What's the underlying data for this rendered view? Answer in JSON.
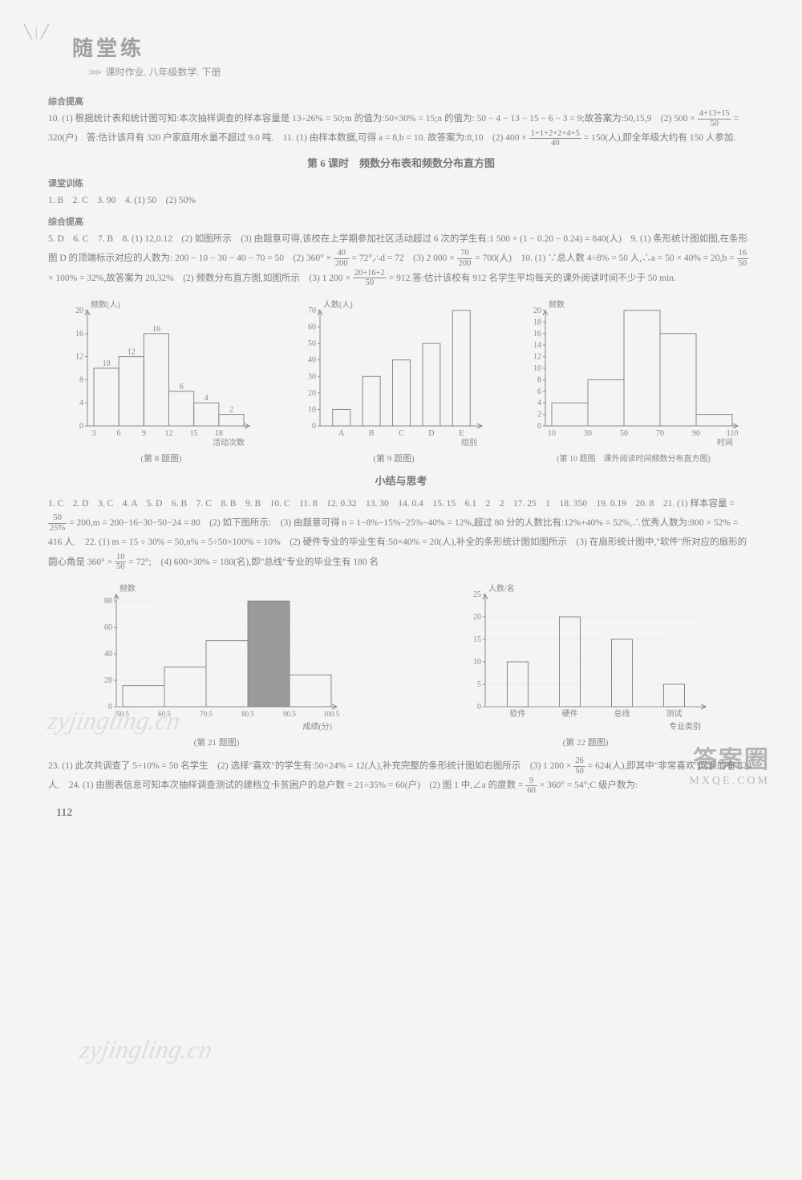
{
  "header": {
    "title": "随堂练",
    "subtitle": "课时作业. 八年级数学. 下册",
    "arrow": ">>>"
  },
  "sections": {
    "s1_title": "综合提高",
    "s1_body": "10. (1) 根据统计表和统计图可知:本次抽样调查的样本容量是 13÷26% = 50;m 的值为:50×30% = 15;n 的值为: 50 − 4 − 13 − 15 − 6 − 3 = 9;故答案为:50,15,9　(2) 500 × ",
    "s1_frac1_n": "4+13+15",
    "s1_frac1_d": "50",
    "s1_body2": " = 320(户)　答:估计该月有 320 户家庭用水量不超过 9.0 吨.　11. (1) 由样本数据,可得 a = 8,b = 10. 故答案为:8,10　(2) 400 × ",
    "s1_frac2_n": "1+1+2+2+4+5",
    "s1_frac2_d": "40",
    "s1_body3": " = 150(人),即全年级大约有 150 人参加.",
    "lesson6_title": "第 6 课时　频数分布表和频数分布直方图",
    "s2_title": "课堂训练",
    "s2_body": "1. B　2. C　3. 90　4. (1) 50　(2) 50%",
    "s3_title": "综合提高",
    "s3_body": "5. D　6. C　7. B　8. (1) 12,0.12　(2) 如图所示　(3) 由题意可得,该校在上学期参加社区活动超过 6 次的学生有:1 500 × (1 − 0.20 − 0.24) = 840(人)　9. (1) 条形统计图如图,在条形图 D 的顶端标示对应的人数为: 200 − 10 − 30 − 40 − 70 = 50　(2) 360° × ",
    "s3_frac1_n": "40",
    "s3_frac1_d": "200",
    "s3_body2": " = 72°,∴d = 72　(3) 2 000 × ",
    "s3_frac2_n": "70",
    "s3_frac2_d": "200",
    "s3_body3": " = 700(人)　10. (1) ∵总人数 4÷8% = 50 人,∴a = 50 × 40% = 20,b = ",
    "s3_frac3_n": "16",
    "s3_frac3_d": "50",
    "s3_body4": " × 100% = 32%,故答案为 20,32%　(2) 频数分布直方图,如图所示　(3) 1 200 × ",
    "s3_frac4_n": "20+16+2",
    "s3_frac4_d": "50",
    "s3_body5": " = 912.答:估计该校有 912 名学生平均每天的课外阅读时间不少于 50 min.",
    "summary_title": "小结与思考",
    "s4_body": "1. C　2. D　3. C　4. A　5. D　6. B　7. C　8. B　9. B　10. C　11. 8　12. 0.32　13. 30　14. 0.4　15. 15　6.1　2　2　17. 25　1　18. 350　19. 0.19　20. 8　21. (1) 样本容量 = ",
    "s4_frac1_n": "50",
    "s4_frac1_d": "25%",
    "s4_body2": " = 200,m = 200−16−30−50−24 = 80　(2) 如下图所示:　(3) 由题意可得 n = 1−8%−15%−25%−40% = 12%,超过 80 分的人数比有:12%+40% = 52%,∴优秀人数为:800 × 52% = 416 人.　22. (1) m = 15 ÷ 30% = 50,n% = 5÷50×100% = 10%　(2) 硬件专业的毕业生有:50×40% = 20(人),补全的条形统计图如图所示　(3) 在扇形统计图中,\"软件\"所对应的扇形的圆心角是 360° × ",
    "s4_frac2_n": "10",
    "s4_frac2_d": "50",
    "s4_body3": " = 72°;　(4) 600×30% = 180(名),即\"总线\"专业的毕业生有 180 名",
    "s5_body": "23. (1) 此次共调查了 5÷10% = 50 名学生　(2) 选择\"喜欢\"的学生有:50×24% = 12(人),补充完整的条形统计图如右图所示　(3) 1 200 × ",
    "s5_frac1_n": "26",
    "s5_frac1_d": "50",
    "s5_body2": " = 624(人),即其中\"非常喜欢\"网课的有 624 人.　24. (1) 由图表信息可知本次抽样调查测试的建档立卡贫困户的总户数 = 21÷35% = 60(户)　(2) 图 1 中,∠a 的度数 = ",
    "s5_frac2_n": "9",
    "s5_frac2_d": "60",
    "s5_body3": " × 360° = 54°;C 级户数为:"
  },
  "chart1": {
    "ylabel": "频数(人)",
    "xlabel": "活动次数",
    "caption": "(第 8 题图)",
    "xticks": [
      "3",
      "6",
      "9",
      "12",
      "15",
      "18"
    ],
    "yticks": [
      0,
      4,
      8,
      12,
      16,
      20
    ],
    "bars": [
      {
        "x": 0,
        "h": 10,
        "label": "10"
      },
      {
        "x": 1,
        "h": 12,
        "label": "12"
      },
      {
        "x": 2,
        "h": 16,
        "label": "16"
      },
      {
        "x": 3,
        "h": 6,
        "label": "6"
      },
      {
        "x": 4,
        "h": 4,
        "label": "4"
      },
      {
        "x": 5,
        "h": 2,
        "label": "2"
      }
    ],
    "ymax": 20
  },
  "chart2": {
    "ylabel": "人数(人)",
    "xlabel": "组别",
    "caption": "(第 9 题图)",
    "xticks": [
      "A",
      "B",
      "C",
      "D",
      "E"
    ],
    "yticks": [
      0,
      10,
      20,
      30,
      40,
      50,
      60,
      70
    ],
    "bars": [
      {
        "x": 0,
        "h": 10
      },
      {
        "x": 1,
        "h": 30
      },
      {
        "x": 2,
        "h": 40
      },
      {
        "x": 3,
        "h": 50
      },
      {
        "x": 4,
        "h": 70
      }
    ],
    "ymax": 70
  },
  "chart3": {
    "ylabel": "频数",
    "xlabel": "时间",
    "caption": "(第 10 题图　课外阅读时间频数分布直方图)",
    "xticks": [
      "10",
      "30",
      "50",
      "70",
      "90",
      "110"
    ],
    "yticks": [
      0,
      2,
      4,
      6,
      8,
      10,
      12,
      14,
      16,
      18,
      20
    ],
    "bars": [
      {
        "x": 0,
        "h": 4
      },
      {
        "x": 1,
        "h": 8
      },
      {
        "x": 2,
        "h": 20
      },
      {
        "x": 3,
        "h": 16
      },
      {
        "x": 4,
        "h": 2
      }
    ],
    "ymax": 20
  },
  "chart4": {
    "ylabel": "频数",
    "xlabel": "成绩(分)",
    "caption": "(第 21 题图)",
    "xticks": [
      "50.5",
      "60.5",
      "70.5",
      "80.5",
      "90.5",
      "100.5"
    ],
    "yticks": [
      0,
      20,
      40,
      60,
      80
    ],
    "bars": [
      {
        "x": 0,
        "h": 16,
        "fill": "none"
      },
      {
        "x": 1,
        "h": 30,
        "fill": "none"
      },
      {
        "x": 2,
        "h": 50,
        "fill": "none"
      },
      {
        "x": 3,
        "h": 80,
        "fill": "#9a9a9a"
      },
      {
        "x": 4,
        "h": 24,
        "fill": "none"
      }
    ],
    "ymax": 85
  },
  "chart5": {
    "ylabel": "人数/名",
    "xlabel": "专业类别",
    "caption": "(第 22 题图)",
    "xticks": [
      "软件",
      "硬件",
      "总线",
      "测试"
    ],
    "yticks": [
      0,
      5,
      10,
      15,
      20,
      25
    ],
    "bars": [
      {
        "x": 0,
        "h": 10
      },
      {
        "x": 1,
        "h": 20
      },
      {
        "x": 2,
        "h": 15
      },
      {
        "x": 3,
        "h": 5
      }
    ],
    "ymax": 25
  },
  "pagenum": "112",
  "watermarks": {
    "wm": "zyjingling.cn",
    "footer_big": "答案圈",
    "footer_small": "MXQE.COM"
  }
}
